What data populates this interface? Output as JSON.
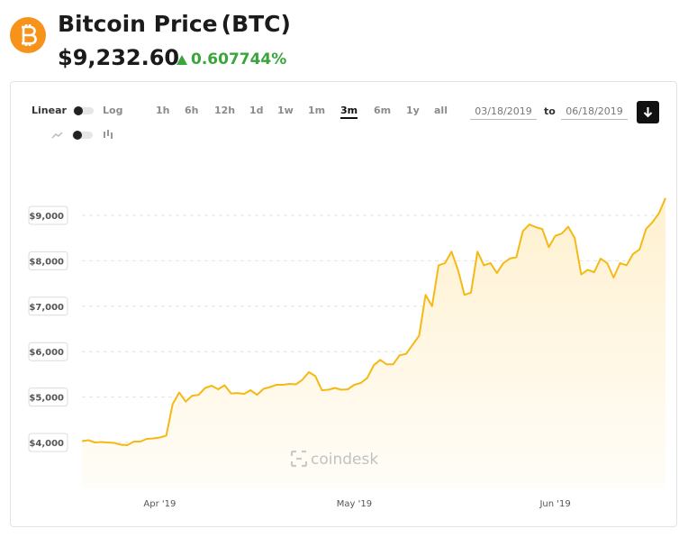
{
  "header": {
    "title": "Bitcoin Price",
    "ticker": "(BTC)",
    "price": "$9,232.60",
    "change": "0.607744%"
  },
  "controls": {
    "scale_linear": "Linear",
    "scale_log": "Log",
    "ranges": [
      "1h",
      "6h",
      "12h",
      "1d",
      "1w",
      "1m",
      "3m",
      "6m",
      "1y",
      "all"
    ],
    "active_range": 6,
    "from": "03/18/2019",
    "to_label": "to",
    "to": "06/18/2019"
  },
  "chart_data": {
    "type": "area",
    "color": "#f5b915",
    "watermark": "coindesk",
    "categories": [
      null,
      null,
      null,
      null,
      null,
      null,
      null,
      null,
      null,
      null,
      null,
      null,
      "Apr '19",
      null,
      null,
      null,
      null,
      null,
      null,
      null,
      null,
      null,
      null,
      null,
      null,
      null,
      null,
      null,
      null,
      null,
      null,
      null,
      null,
      null,
      null,
      null,
      null,
      null,
      null,
      null,
      null,
      null,
      "May '19",
      null,
      null,
      null,
      null,
      null,
      null,
      null,
      null,
      null,
      null,
      null,
      null,
      null,
      null,
      null,
      null,
      null,
      null,
      null,
      null,
      null,
      null,
      null,
      null,
      null,
      null,
      null,
      null,
      null,
      null,
      "Jun '19",
      null,
      null,
      null,
      null,
      null,
      null,
      null,
      null,
      null,
      null,
      null,
      null,
      null,
      null,
      null,
      null,
      null
    ],
    "values": [
      4030,
      4050,
      4000,
      4010,
      4000,
      3990,
      3950,
      3940,
      4020,
      4020,
      4080,
      4090,
      4110,
      4150,
      4850,
      5100,
      4900,
      5030,
      5050,
      5200,
      5250,
      5170,
      5260,
      5080,
      5090,
      5070,
      5150,
      5050,
      5180,
      5220,
      5270,
      5270,
      5290,
      5280,
      5380,
      5550,
      5460,
      5150,
      5160,
      5200,
      5160,
      5170,
      5270,
      5310,
      5420,
      5700,
      5820,
      5720,
      5720,
      5920,
      5950,
      6150,
      6350,
      7250,
      7000,
      7900,
      7950,
      8200,
      7800,
      7250,
      7300,
      8200,
      7900,
      7950,
      7730,
      7950,
      8050,
      8080,
      8650,
      8800,
      8740,
      8700,
      8300,
      8550,
      8600,
      8750,
      8500,
      7700,
      7800,
      7750,
      8050,
      7950,
      7630,
      7950,
      7900,
      8150,
      8250,
      8700,
      8850,
      9050,
      9380
    ],
    "ylim": [
      3000,
      10000
    ],
    "yticks": [
      {
        "value": 4000,
        "label": "$4,000"
      },
      {
        "value": 5000,
        "label": "$5,000"
      },
      {
        "value": 6000,
        "label": "$6,000"
      },
      {
        "value": 7000,
        "label": "$7,000"
      },
      {
        "value": 8000,
        "label": "$8,000"
      },
      {
        "value": 9000,
        "label": "$9,000"
      }
    ],
    "grid": true
  }
}
